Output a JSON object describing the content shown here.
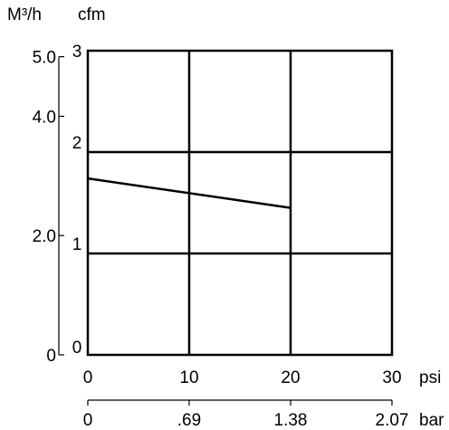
{
  "colors": {
    "ink": "#000000",
    "background": "#ffffff"
  },
  "chart_data": {
    "type": "line",
    "title": "",
    "units": {
      "flow_left": "M³/h",
      "flow_right": "cfm",
      "pressure_primary": "psi",
      "pressure_secondary": "bar"
    },
    "axes": {
      "x_primary": {
        "label": "psi",
        "range": [
          0,
          30
        ],
        "ticks": [
          0,
          10,
          20,
          30
        ],
        "tick_labels": [
          "0",
          "10",
          "20",
          "30"
        ]
      },
      "x_secondary": {
        "label": "bar",
        "range": [
          0,
          2.07
        ],
        "ticks": [
          0,
          0.69,
          1.38,
          2.07
        ],
        "tick_labels": [
          "0",
          ".69",
          "1.38",
          "2.07"
        ]
      },
      "y_primary": {
        "label": "cfm",
        "range": [
          0,
          3
        ],
        "ticks": [
          0,
          1,
          2,
          3
        ],
        "tick_labels": [
          "0",
          "1",
          "2",
          "3"
        ]
      },
      "y_secondary": {
        "label": "M³/h",
        "range": [
          0,
          5.1
        ],
        "ticks": [
          0,
          2.0,
          4.0,
          5.0
        ],
        "tick_labels": [
          "0",
          "2.0",
          "4.0",
          "5.0"
        ]
      }
    },
    "grid": true,
    "legend": "none",
    "series": [
      {
        "x": [
          0,
          20
        ],
        "y": [
          1.74,
          1.45
        ]
      }
    ]
  }
}
